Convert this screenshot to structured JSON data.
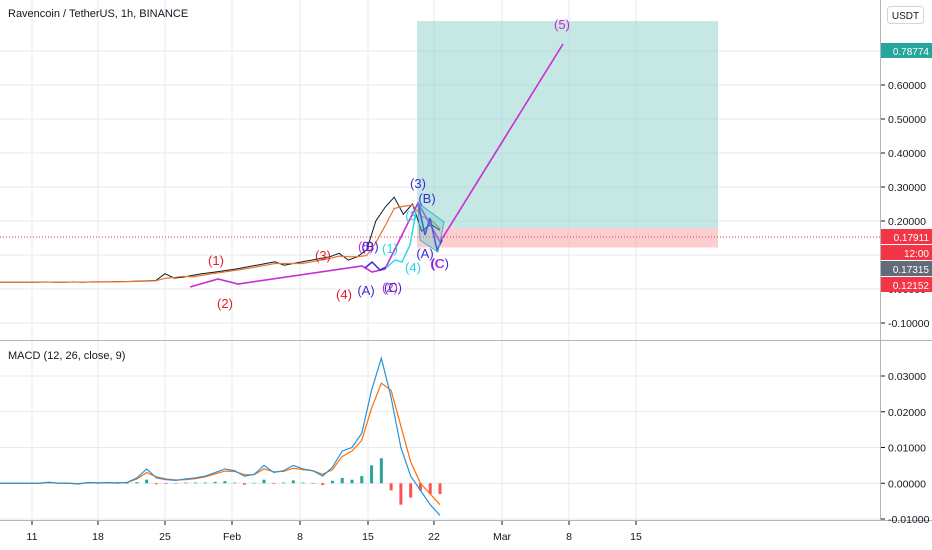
{
  "header": {
    "symbol_title": "Ravencoin / TetherUS, 1h, BINANCE",
    "currency_button": "USDT"
  },
  "colors": {
    "price_line": "#131722",
    "ma_line": "#e8742a",
    "projection_line": "#c62fd8",
    "target_zone": "#80cbc4",
    "stop_zone": "#f7a8a8",
    "badge_green": "#26a69a",
    "badge_red": "#f23645",
    "badge_grey": "#636b78",
    "macd_line": "#2a93d5",
    "signal_line": "#ff6d00",
    "hist_up": "#26a69a",
    "hist_down": "#ff5252",
    "grid": "#e8eaef"
  },
  "price_axis": {
    "ticks": [
      "0.70000",
      "0.60000",
      "0.50000",
      "0.40000",
      "0.30000",
      "0.20000",
      "0.10000",
      "0.00000",
      "-0.10000"
    ],
    "badges": [
      {
        "text": "0.78774",
        "color": "green"
      },
      {
        "text": "0.17911",
        "color": "red"
      },
      {
        "text": "12:00",
        "color": "red"
      },
      {
        "text": "0.17315",
        "color": "grey"
      },
      {
        "text": "0.12152",
        "color": "red"
      }
    ]
  },
  "time_axis": {
    "ticks": [
      "11",
      "18",
      "25",
      "Feb",
      "8",
      "15",
      "22",
      "Mar",
      "8",
      "15"
    ]
  },
  "macd": {
    "title": "MACD (12, 26, close, 9)",
    "ticks": [
      "0.03000",
      "0.02000",
      "0.01000",
      "0.00000",
      "-0.01000"
    ]
  },
  "wave_labels": [
    {
      "text": "(1)",
      "color": "#e0202e"
    },
    {
      "text": "(2)",
      "color": "#e0202e"
    },
    {
      "text": "(3)",
      "color": "#e0202e"
    },
    {
      "text": "(4)",
      "color": "#e0202e"
    },
    {
      "text": "(5)",
      "color": "#d026d8"
    },
    {
      "text": "(B)",
      "color": "#3a2bd0"
    },
    {
      "text": "(1)",
      "color": "#22d4e6"
    },
    {
      "text": "(A)",
      "color": "#3a2bd0"
    },
    {
      "text": "(2)",
      "color": "#d026d8"
    },
    {
      "text": "(C)",
      "color": "#3a2bd0"
    },
    {
      "text": "(3)",
      "color": "#3a2bd0"
    },
    {
      "text": "(B)",
      "color": "#3a2bd0"
    },
    {
      "text": "(3",
      "color": "#22d4e6"
    },
    {
      "text": "(4)",
      "color": "#22d4e6"
    },
    {
      "text": "(A)",
      "color": "#3a2bd0"
    },
    {
      "text": "(C)",
      "color": "#3a2bd0"
    },
    {
      "text": "(C",
      "color": "#d026d8"
    },
    {
      "text": "(5)",
      "color": "#d026d8"
    }
  ],
  "chart_data": [
    {
      "type": "line",
      "title": "Ravencoin / TetherUS, 1h, BINANCE",
      "xlabel": "",
      "ylabel": "",
      "ylim": [
        -0.15,
        0.9
      ],
      "x_ticks": [
        "11",
        "18",
        "25",
        "Feb",
        "8",
        "15",
        "22",
        "Mar",
        "8",
        "15"
      ],
      "series": [
        {
          "values": [
            0.02,
            0.02,
            0.02,
            0.02,
            0.02,
            0.021,
            0.02,
            0.02,
            0.021,
            0.02,
            0.021,
            0.021,
            0.021,
            0.022,
            0.022,
            0.023,
            0.024,
            0.025,
            0.045,
            0.032,
            0.035,
            0.04,
            0.045,
            0.048,
            0.052,
            0.056,
            0.06,
            0.065,
            0.07,
            0.075,
            0.08,
            0.07,
            0.075,
            0.08,
            0.085,
            0.09,
            0.095,
            0.105,
            0.085,
            0.095,
            0.115,
            0.2,
            0.24,
            0.27,
            0.22,
            0.25,
            0.17,
            0.19,
            0.173
          ]
        }
      ],
      "projection_path": [
        0.173,
        0.287,
        0.146,
        0.845
      ],
      "target_zone": [
        0.179,
        0.788
      ],
      "stop_zone": [
        0.122,
        0.179
      ]
    },
    {
      "type": "line",
      "title": "MACD (12, 26, close, 9)",
      "ylim": [
        -0.012,
        0.037
      ],
      "series": [
        {
          "name": "MACD",
          "values": [
            0,
            0,
            0,
            0,
            0,
            0.0003,
            0,
            0,
            -0.0002,
            0.0002,
            0.0001,
            0.0002,
            0.0001,
            0.0002,
            0.0015,
            0.004,
            0.0015,
            0.001,
            0.0008,
            0.0012,
            0.0015,
            0.002,
            0.003,
            0.004,
            0.0035,
            0.002,
            0.0025,
            0.005,
            0.003,
            0.0035,
            0.005,
            0.004,
            0.0035,
            0.002,
            0.0045,
            0.009,
            0.01,
            0.014,
            0.026,
            0.035,
            0.024,
            0.01,
            0.002,
            -0.002,
            -0.006,
            -0.009
          ]
        },
        {
          "name": "Signal",
          "values": [
            0,
            0,
            0,
            0,
            0,
            0.0002,
            0,
            0,
            -0.0001,
            0.0001,
            0.0001,
            0.0001,
            0.0001,
            0.0002,
            0.0012,
            0.003,
            0.0018,
            0.0012,
            0.0009,
            0.001,
            0.0013,
            0.0018,
            0.0026,
            0.0034,
            0.0033,
            0.0024,
            0.0024,
            0.004,
            0.0032,
            0.0033,
            0.0042,
            0.0038,
            0.0035,
            0.0025,
            0.0038,
            0.0075,
            0.009,
            0.012,
            0.021,
            0.028,
            0.026,
            0.016,
            0.006,
            0.0,
            -0.003,
            -0.006
          ]
        }
      ],
      "histogram": [
        0,
        0,
        0,
        0,
        0,
        0.0001,
        0,
        0,
        -0.0001,
        0.0001,
        0,
        0.0001,
        0,
        0,
        0.0003,
        0.001,
        -0.0003,
        -0.0002,
        -0.0001,
        0.0002,
        0.0002,
        0.0002,
        0.0004,
        0.0006,
        0.0002,
        -0.0004,
        0.0001,
        0.001,
        -0.0002,
        0.0002,
        0.0008,
        0.0002,
        0,
        -0.0005,
        0.0007,
        0.0015,
        0.001,
        0.002,
        0.005,
        0.007,
        -0.002,
        -0.006,
        -0.004,
        -0.002,
        -0.003,
        -0.003
      ]
    }
  ]
}
